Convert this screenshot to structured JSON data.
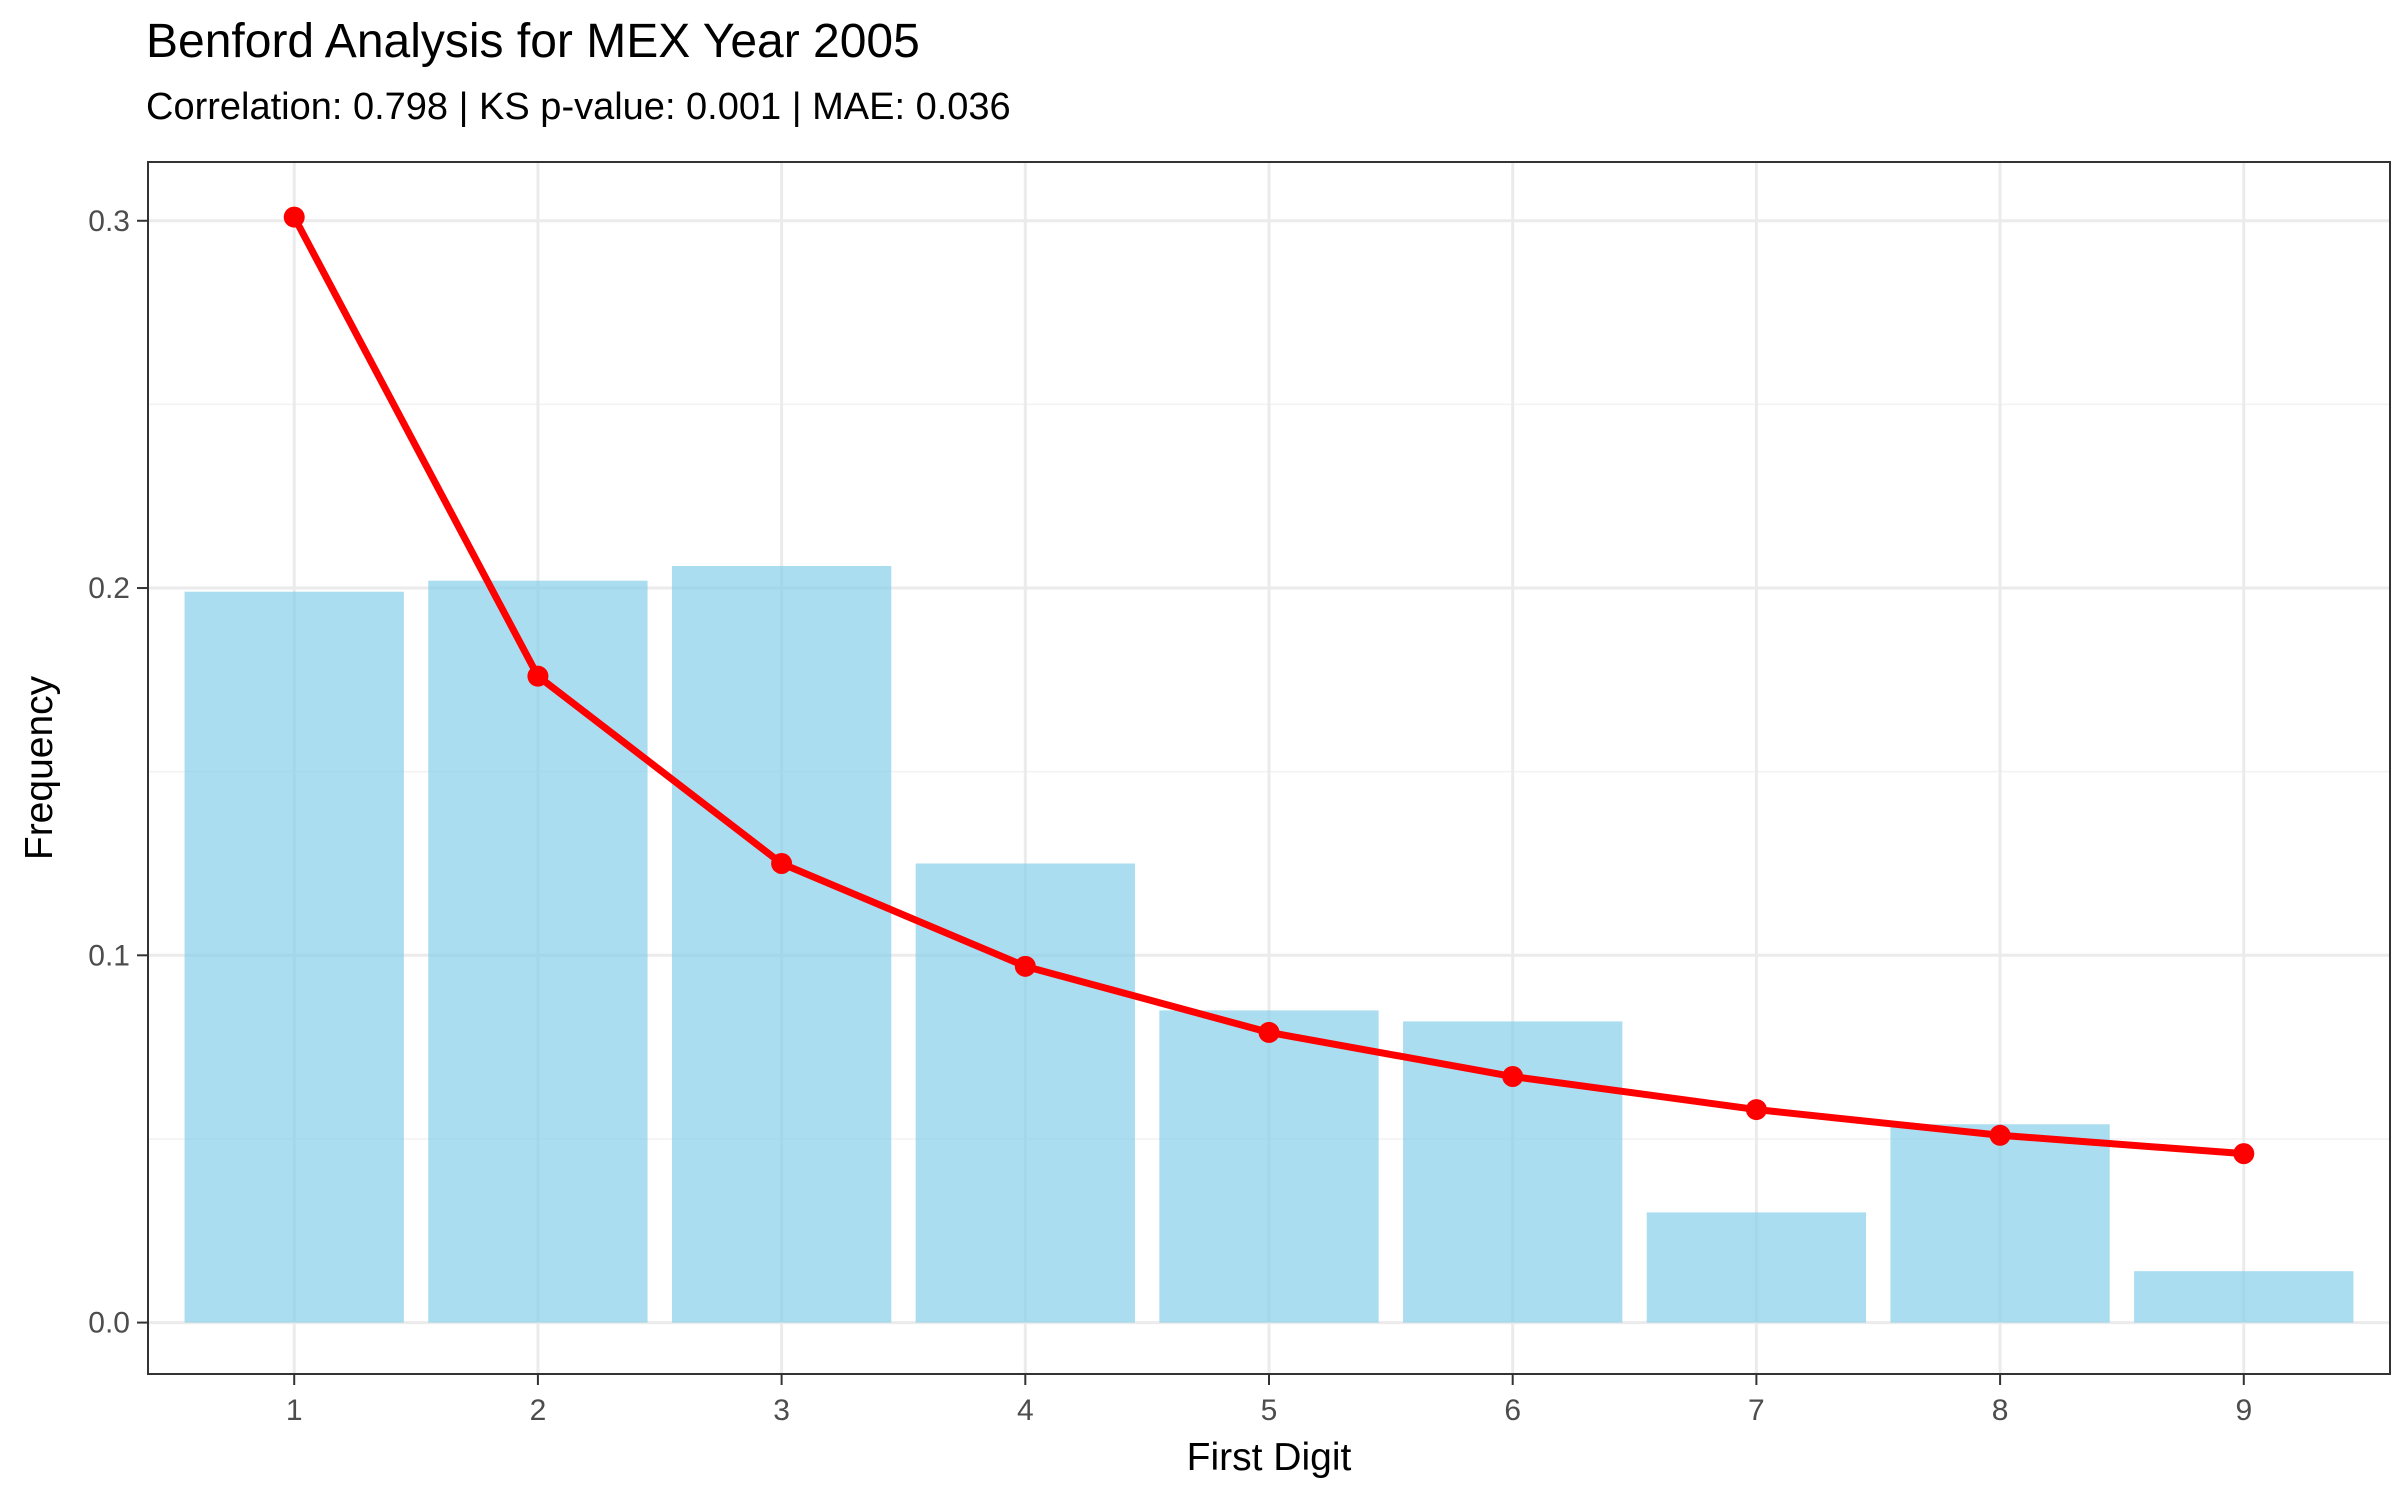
{
  "chart_data": {
    "type": "bar",
    "title": "Benford Analysis for MEX Year 2005",
    "subtitle": "Correlation: 0.798 | KS p-value: 0.001 | MAE: 0.036",
    "xlabel": "First Digit",
    "ylabel": "Frequency",
    "categories": [
      "1",
      "2",
      "3",
      "4",
      "5",
      "6",
      "7",
      "8",
      "9"
    ],
    "ylim": [
      -0.014,
      0.316
    ],
    "yticks": [
      0.0,
      0.1,
      0.2,
      0.3
    ],
    "ytick_labels": [
      "0.0",
      "0.1",
      "0.2",
      "0.3"
    ],
    "grid": true,
    "series": [
      {
        "type": "bar",
        "color": "#87CEEB",
        "values": [
          0.199,
          0.202,
          0.206,
          0.125,
          0.085,
          0.082,
          0.03,
          0.054,
          0.014
        ]
      },
      {
        "type": "line",
        "color": "#FF0000",
        "values": [
          0.301,
          0.176,
          0.125,
          0.097,
          0.079,
          0.067,
          0.058,
          0.051,
          0.046
        ]
      }
    ]
  }
}
